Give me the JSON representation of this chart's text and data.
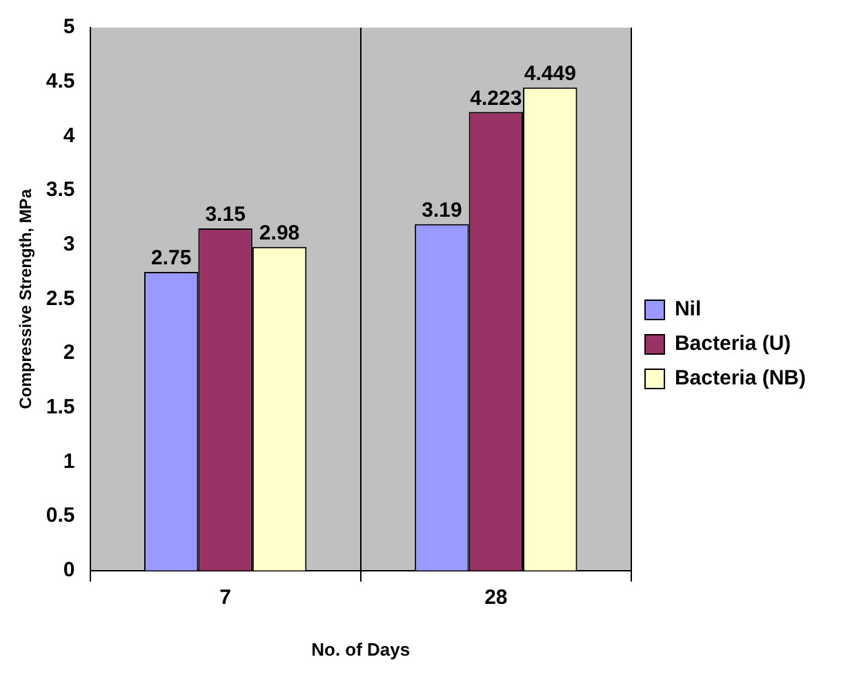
{
  "chart_data": {
    "type": "bar",
    "xlabel": "No. of Days",
    "ylabel": "Compressive Strength, MPa",
    "categories": [
      "7",
      "28"
    ],
    "series": [
      {
        "name": "Nil",
        "color": "#9999ff",
        "values": [
          2.75,
          3.19
        ]
      },
      {
        "name": "Bacteria (U)",
        "color": "#993366",
        "values": [
          3.15,
          4.223
        ]
      },
      {
        "name": "Bacteria (NB)",
        "color": "#ffffcc",
        "values": [
          2.98,
          4.449
        ]
      }
    ],
    "ylim": [
      0,
      5
    ],
    "yticks": [
      0,
      0.5,
      1,
      1.5,
      2,
      2.5,
      3,
      3.5,
      4,
      4.5,
      5
    ],
    "grid": "x",
    "legend": "right",
    "data_labels": true
  }
}
